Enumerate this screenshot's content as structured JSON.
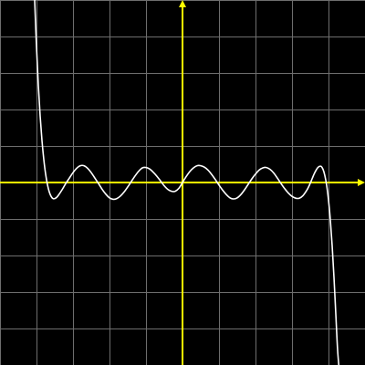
{
  "colors": {
    "background": "#000000",
    "grid": "#6e6e6e",
    "axis": "#ffff00",
    "curve": "#ffffff"
  },
  "chart_data": {
    "type": "line",
    "title": "",
    "xlabel": "",
    "ylabel": "",
    "xlim": [
      -5,
      5
    ],
    "ylim": [
      -5,
      5
    ],
    "grid": true,
    "grid_step": 1,
    "axes_through_origin": true,
    "axis_arrows": true,
    "series": [
      {
        "points": [
          [
            -4.05,
            5.0
          ],
          [
            -4.0,
            3.71
          ],
          [
            -3.95,
            2.66
          ],
          [
            -3.9,
            1.82
          ],
          [
            -3.85,
            1.15
          ],
          [
            -3.8,
            0.63
          ],
          [
            -3.75,
            0.23
          ],
          [
            -3.7,
            -0.06
          ],
          [
            -3.65,
            -0.26
          ],
          [
            -3.6,
            -0.38
          ],
          [
            -3.55,
            -0.44
          ],
          [
            -3.5,
            -0.44
          ],
          [
            -3.45,
            -0.41
          ],
          [
            -3.4,
            -0.35
          ],
          [
            -3.3,
            -0.2
          ],
          [
            -3.2,
            -0.03
          ],
          [
            -3.1,
            0.12
          ],
          [
            -3.0,
            0.27
          ],
          [
            -2.9,
            0.39
          ],
          [
            -2.8,
            0.46
          ],
          [
            -2.7,
            0.46
          ],
          [
            -2.6,
            0.39
          ],
          [
            -2.5,
            0.27
          ],
          [
            -2.4,
            0.12
          ],
          [
            -2.3,
            -0.03
          ],
          [
            -2.2,
            -0.19
          ],
          [
            -2.1,
            -0.32
          ],
          [
            -2.0,
            -0.42
          ],
          [
            -1.9,
            -0.46
          ],
          [
            -1.8,
            -0.44
          ],
          [
            -1.7,
            -0.37
          ],
          [
            -1.6,
            -0.26
          ],
          [
            -1.5,
            -0.12
          ],
          [
            -1.4,
            0.03
          ],
          [
            -1.3,
            0.18
          ],
          [
            -1.2,
            0.31
          ],
          [
            -1.1,
            0.4
          ],
          [
            -1.0,
            0.41
          ],
          [
            -0.9,
            0.37
          ],
          [
            -0.8,
            0.28
          ],
          [
            -0.7,
            0.17
          ],
          [
            -0.6,
            0.04
          ],
          [
            -0.5,
            -0.09
          ],
          [
            -0.4,
            -0.19
          ],
          [
            -0.3,
            -0.24
          ],
          [
            -0.2,
            -0.24
          ],
          [
            -0.1,
            -0.16
          ],
          [
            0.0,
            0.0
          ],
          [
            0.1,
            0.16
          ],
          [
            0.2,
            0.3
          ],
          [
            0.3,
            0.4
          ],
          [
            0.4,
            0.46
          ],
          [
            0.5,
            0.46
          ],
          [
            0.6,
            0.42
          ],
          [
            0.7,
            0.34
          ],
          [
            0.8,
            0.22
          ],
          [
            0.9,
            0.08
          ],
          [
            1.0,
            -0.07
          ],
          [
            1.1,
            -0.21
          ],
          [
            1.2,
            -0.33
          ],
          [
            1.3,
            -0.42
          ],
          [
            1.4,
            -0.45
          ],
          [
            1.5,
            -0.42
          ],
          [
            1.6,
            -0.33
          ],
          [
            1.7,
            -0.2
          ],
          [
            1.8,
            -0.05
          ],
          [
            1.9,
            0.1
          ],
          [
            2.0,
            0.23
          ],
          [
            2.1,
            0.34
          ],
          [
            2.2,
            0.4
          ],
          [
            2.3,
            0.41
          ],
          [
            2.4,
            0.36
          ],
          [
            2.5,
            0.26
          ],
          [
            2.6,
            0.12
          ],
          [
            2.7,
            -0.03
          ],
          [
            2.8,
            -0.17
          ],
          [
            2.9,
            -0.29
          ],
          [
            3.0,
            -0.38
          ],
          [
            3.1,
            -0.43
          ],
          [
            3.2,
            -0.43
          ],
          [
            3.3,
            -0.36
          ],
          [
            3.4,
            -0.22
          ],
          [
            3.45,
            -0.13
          ],
          [
            3.5,
            -0.02
          ],
          [
            3.55,
            0.1
          ],
          [
            3.6,
            0.22
          ],
          [
            3.65,
            0.32
          ],
          [
            3.7,
            0.4
          ],
          [
            3.75,
            0.44
          ],
          [
            3.8,
            0.44
          ],
          [
            3.85,
            0.36
          ],
          [
            3.9,
            0.19
          ],
          [
            3.95,
            -0.08
          ],
          [
            4.0,
            -0.48
          ],
          [
            4.05,
            -1.02
          ],
          [
            4.1,
            -1.73
          ],
          [
            4.15,
            -2.6
          ],
          [
            4.2,
            -3.6
          ],
          [
            4.25,
            -4.6
          ],
          [
            4.3,
            -5.2
          ]
        ]
      }
    ]
  }
}
